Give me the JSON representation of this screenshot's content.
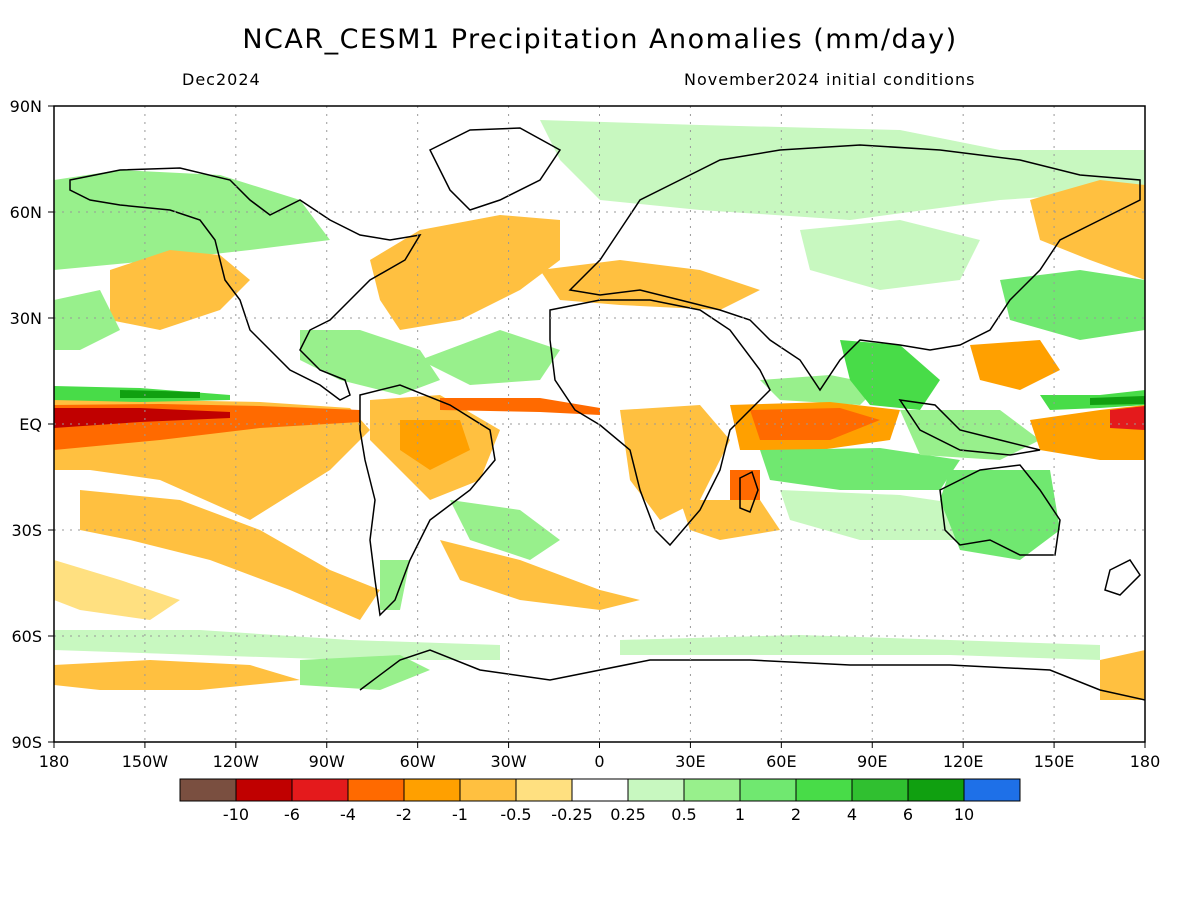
{
  "title": "NCAR_CESM1 Precipitation Anomalies (mm/day)",
  "subtitle_left": "Dec2024",
  "subtitle_right": "November2024 initial conditions",
  "y_axis_labels": [
    "90N",
    "60N",
    "30N",
    "EQ",
    "30S",
    "60S",
    "90S"
  ],
  "x_axis_labels": [
    "180",
    "150W",
    "120W",
    "90W",
    "60W",
    "30W",
    "0",
    "30E",
    "60E",
    "90E",
    "120E",
    "150E",
    "180"
  ],
  "colorbar": {
    "colors": [
      "#7a4f40",
      "#c00000",
      "#e41a1c",
      "#ff6a00",
      "#ffa000",
      "#ffc040",
      "#ffe080",
      "#ffffff",
      "#c8f8c0",
      "#98f08c",
      "#70e870",
      "#48dc48",
      "#30c030",
      "#10a010",
      "#1e70e8"
    ],
    "labels": [
      "-10",
      "-6",
      "-4",
      "-2",
      "-1",
      "-0.5",
      "-0.25",
      "0.25",
      "0.5",
      "1",
      "2",
      "4",
      "6",
      "10"
    ]
  },
  "anomaly_colors": {
    "dry_light": "#ffe080",
    "dry": "#ffc040",
    "dry_mid": "#ffa000",
    "dry_strong": "#ff6a00",
    "dry_stronger": "#e41a1c",
    "dry_extreme": "#c00000",
    "wet_light": "#c8f8c0",
    "wet": "#98f08c",
    "wet_mid": "#70e870",
    "wet_strong": "#48dc48",
    "wet_stronger": "#30c030",
    "wet_extreme": "#10a010",
    "wet_max": "#1e70e8"
  }
}
